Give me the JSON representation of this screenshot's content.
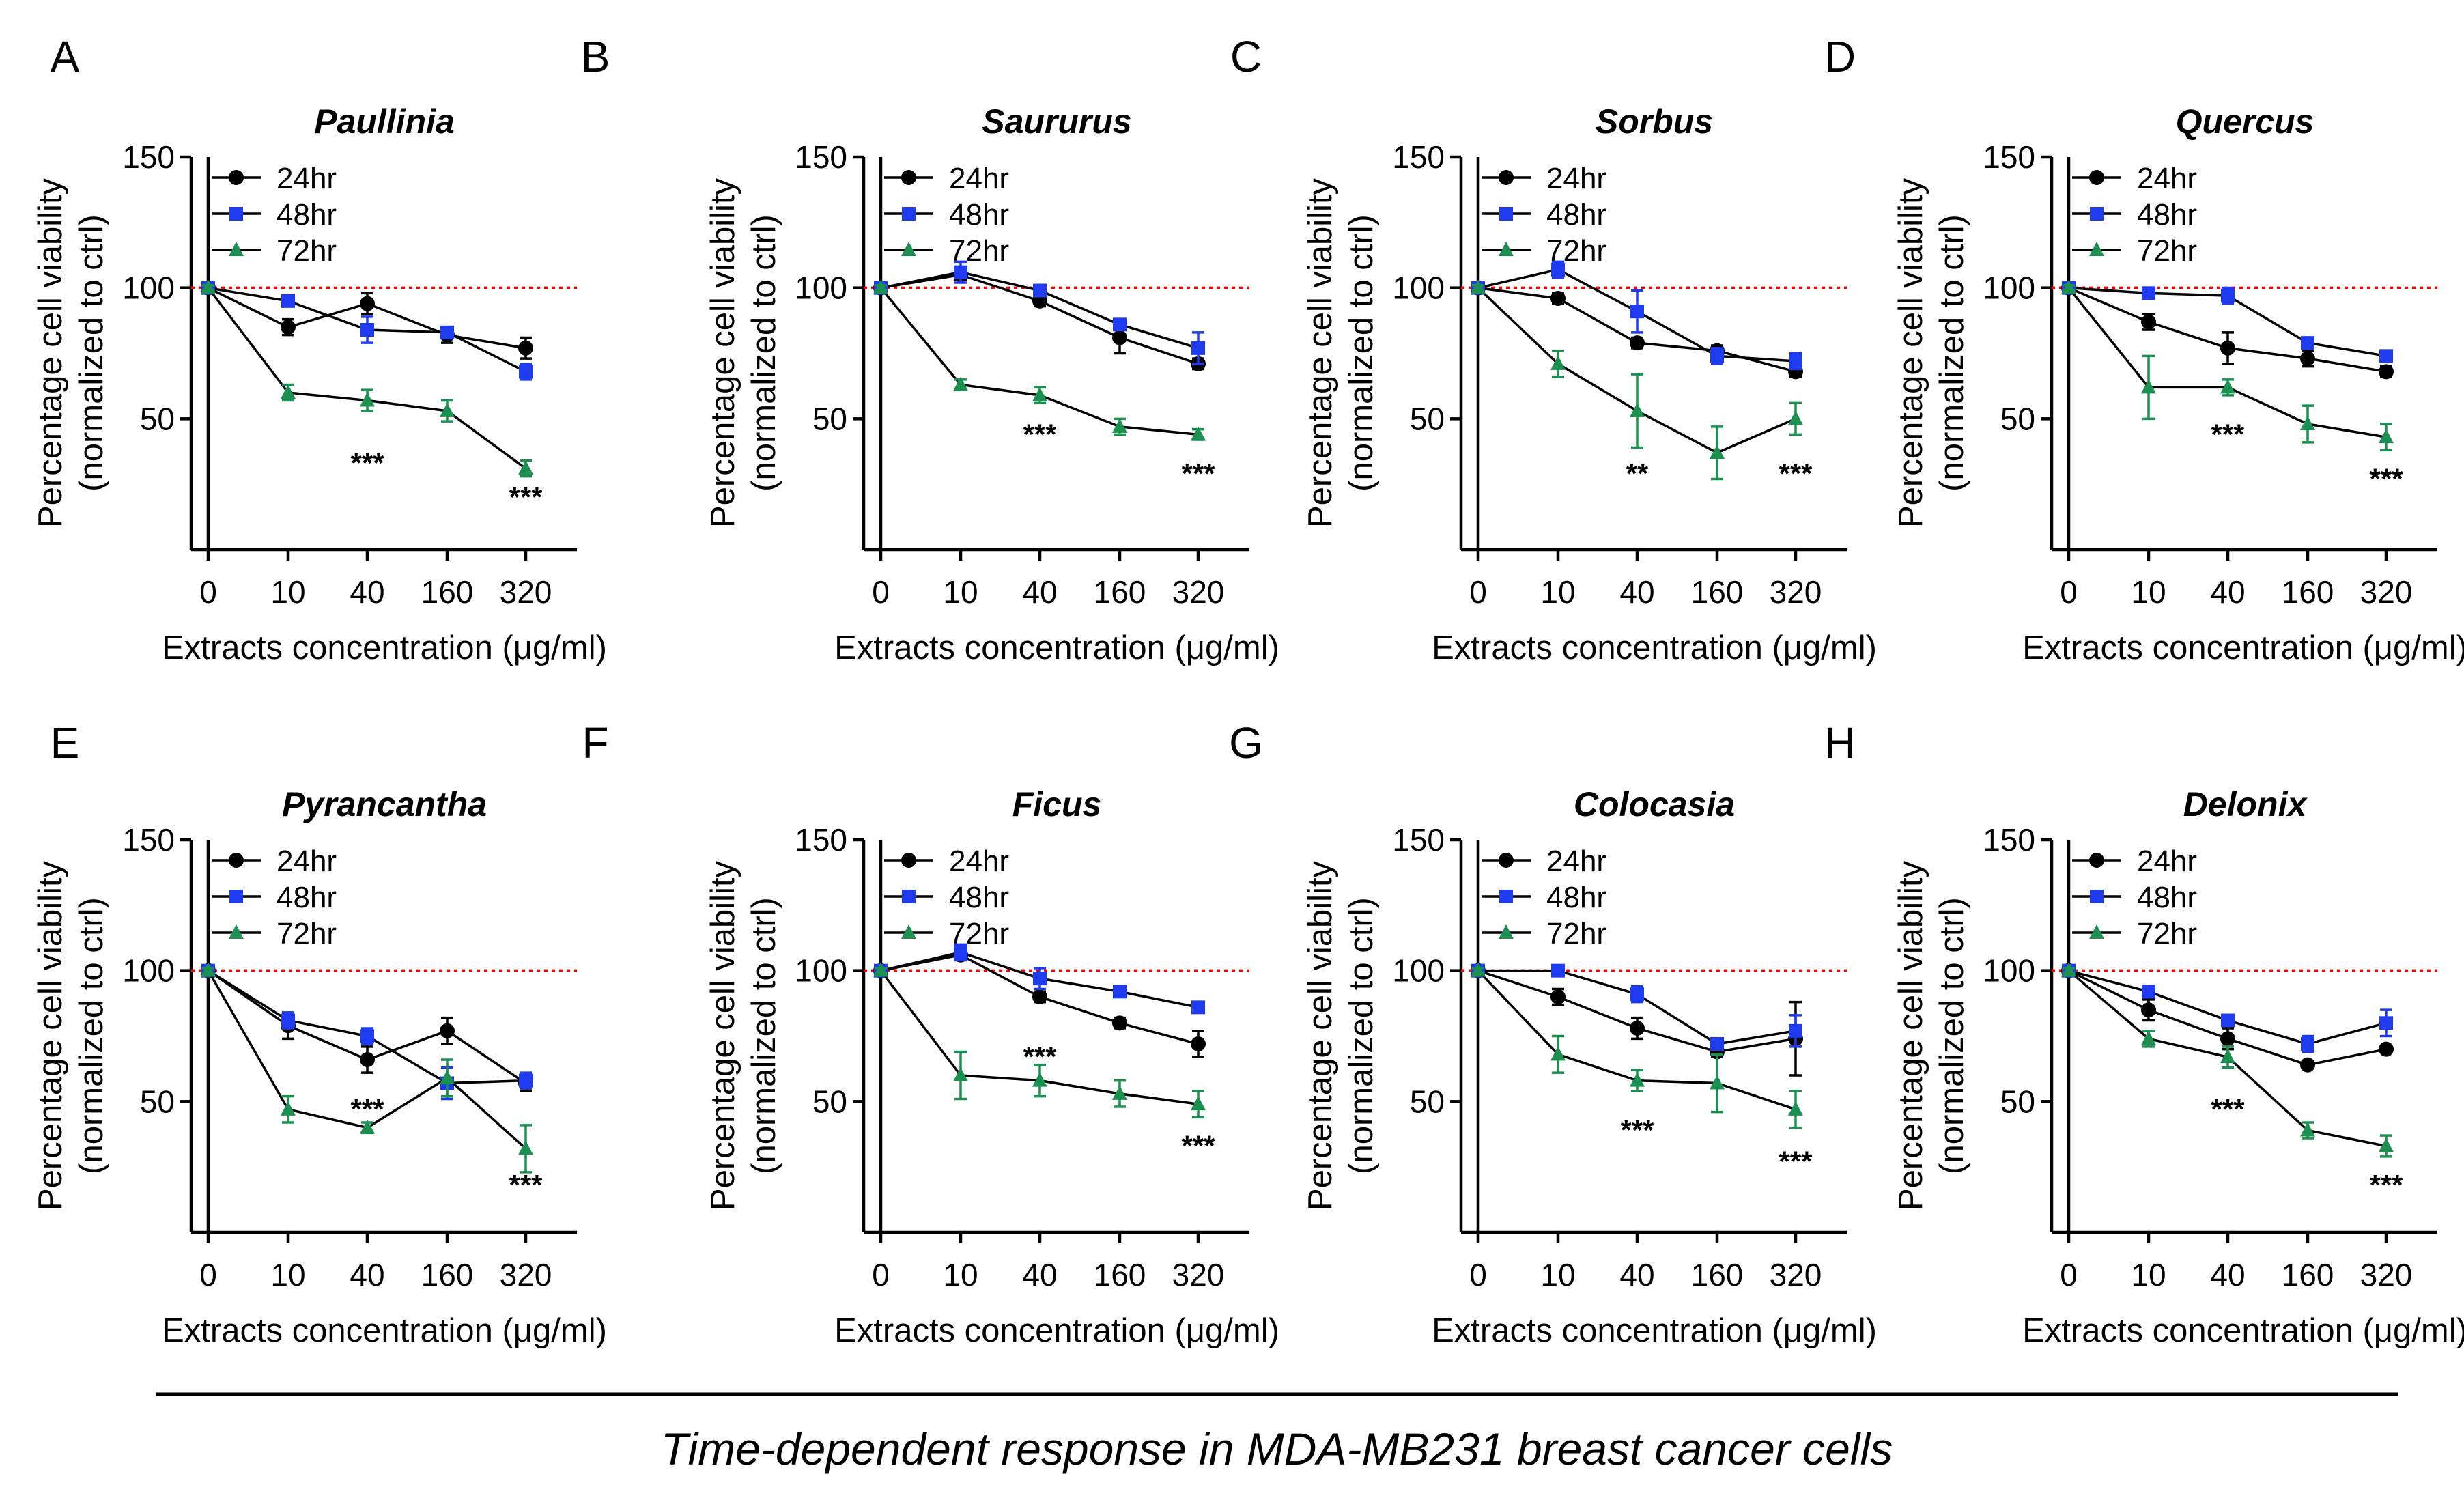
{
  "colors": {
    "h24": "#000000",
    "h48": "#1f3bef",
    "h72": "#1b9050",
    "ref": "#ff0000"
  },
  "caption": "Time-dependent response in MDA-MB231 breast cancer cells",
  "chart_data": [
    {
      "type": "line",
      "panel": "A",
      "title": "Paullinia",
      "xlabel": "Extracts concentration (μg/ml)",
      "ylabel": "Percentage cell viability",
      "ylabel2": "(normalized to ctrl)",
      "categories": [
        "0",
        "10",
        "40",
        "160",
        "320"
      ],
      "yticks": [
        "50",
        "100",
        "150"
      ],
      "ylim": [
        0,
        150
      ],
      "reference_line": 100,
      "series": [
        {
          "name": "24hr",
          "values": [
            100,
            85,
            94,
            82,
            77
          ],
          "errors": [
            1,
            3,
            4,
            3,
            4
          ]
        },
        {
          "name": "48hr",
          "values": [
            100,
            95,
            84,
            83,
            68
          ],
          "errors": [
            1,
            2,
            5,
            2,
            3
          ]
        },
        {
          "name": "72hr",
          "values": [
            100,
            60,
            57,
            53,
            31
          ],
          "errors": [
            1,
            3,
            4,
            4,
            3
          ]
        }
      ],
      "annotations": [
        {
          "text": "***",
          "x_index": 2,
          "y": 33
        },
        {
          "text": "***",
          "x_index": 4,
          "y": 20
        }
      ]
    },
    {
      "type": "line",
      "panel": "B",
      "title": "Saururus",
      "xlabel": "Extracts concentration (μg/ml)",
      "ylabel": "Percentage cell viability",
      "ylabel2": "(normalized to ctrl)",
      "categories": [
        "0",
        "10",
        "40",
        "160",
        "320"
      ],
      "yticks": [
        "50",
        "100",
        "150"
      ],
      "ylim": [
        0,
        150
      ],
      "reference_line": 100,
      "series": [
        {
          "name": "24hr",
          "values": [
            100,
            105,
            95,
            81,
            71
          ],
          "errors": [
            1,
            2,
            2,
            6,
            2
          ]
        },
        {
          "name": "48hr",
          "values": [
            100,
            106,
            99,
            86,
            77
          ],
          "errors": [
            1,
            4,
            2,
            2,
            6
          ]
        },
        {
          "name": "72hr",
          "values": [
            100,
            63,
            59,
            47,
            44
          ],
          "errors": [
            1,
            2,
            3,
            3,
            2
          ]
        }
      ],
      "annotations": [
        {
          "text": "***",
          "x_index": 2,
          "y": 44
        },
        {
          "text": "***",
          "x_index": 4,
          "y": 29
        }
      ]
    },
    {
      "type": "line",
      "panel": "C",
      "title": "Sorbus",
      "xlabel": "Extracts concentration (μg/ml)",
      "ylabel": "Percentage cell viability",
      "ylabel2": "(normalized to ctrl)",
      "categories": [
        "0",
        "10",
        "40",
        "160",
        "320"
      ],
      "yticks": [
        "50",
        "100",
        "150"
      ],
      "ylim": [
        0,
        150
      ],
      "reference_line": 100,
      "series": [
        {
          "name": "24hr",
          "values": [
            100,
            96,
            79,
            76,
            68
          ],
          "errors": [
            1,
            2,
            2,
            2,
            2
          ]
        },
        {
          "name": "48hr",
          "values": [
            100,
            107,
            91,
            74,
            72
          ],
          "errors": [
            1,
            3,
            8,
            3,
            3
          ]
        },
        {
          "name": "72hr",
          "values": [
            100,
            71,
            53,
            37,
            50
          ],
          "errors": [
            1,
            5,
            14,
            10,
            6
          ]
        }
      ],
      "annotations": [
        {
          "text": "**",
          "x_index": 2,
          "y": 29
        },
        {
          "text": "***",
          "x_index": 4,
          "y": 29
        }
      ]
    },
    {
      "type": "line",
      "panel": "D",
      "title": "Quercus",
      "xlabel": "Extracts concentration (μg/ml)",
      "ylabel": "Percentage cell viability",
      "ylabel2": "(normalized to ctrl)",
      "categories": [
        "0",
        "10",
        "40",
        "160",
        "320"
      ],
      "yticks": [
        "50",
        "100",
        "150"
      ],
      "ylim": [
        0,
        150
      ],
      "reference_line": 100,
      "series": [
        {
          "name": "24hr",
          "values": [
            100,
            87,
            77,
            73,
            68
          ],
          "errors": [
            1,
            3,
            6,
            3,
            2
          ]
        },
        {
          "name": "48hr",
          "values": [
            100,
            98,
            97,
            79,
            74
          ],
          "errors": [
            1,
            2,
            3,
            2,
            2
          ]
        },
        {
          "name": "72hr",
          "values": [
            100,
            62,
            62,
            48,
            43
          ],
          "errors": [
            1,
            12,
            3,
            7,
            5
          ]
        }
      ],
      "annotations": [
        {
          "text": "***",
          "x_index": 2,
          "y": 44
        },
        {
          "text": "***",
          "x_index": 4,
          "y": 27
        }
      ]
    },
    {
      "type": "line",
      "panel": "E",
      "title": "Pyrancantha",
      "xlabel": "Extracts concentration (μg/ml)",
      "ylabel": "Percentage cell viability",
      "ylabel2": "(normalized to ctrl)",
      "categories": [
        "0",
        "10",
        "40",
        "160",
        "320"
      ],
      "yticks": [
        "50",
        "100",
        "150"
      ],
      "ylim": [
        0,
        150
      ],
      "reference_line": 100,
      "series": [
        {
          "name": "24hr",
          "values": [
            100,
            79,
            66,
            77,
            57
          ],
          "errors": [
            1,
            5,
            5,
            5,
            3
          ]
        },
        {
          "name": "48hr",
          "values": [
            100,
            81,
            75,
            57,
            58
          ],
          "errors": [
            1,
            3,
            3,
            6,
            3
          ]
        },
        {
          "name": "72hr",
          "values": [
            100,
            47,
            40,
            59,
            32
          ],
          "errors": [
            1,
            5,
            2,
            7,
            9
          ]
        }
      ],
      "annotations": [
        {
          "text": "***",
          "x_index": 2,
          "y": 47
        },
        {
          "text": "***",
          "x_index": 4,
          "y": 18
        }
      ]
    },
    {
      "type": "line",
      "panel": "F",
      "title": "Ficus",
      "xlabel": "Extracts concentration (μg/ml)",
      "ylabel": "Percentage cell viability",
      "ylabel2": "(normalized to ctrl)",
      "categories": [
        "0",
        "10",
        "40",
        "160",
        "320"
      ],
      "yticks": [
        "50",
        "100",
        "150"
      ],
      "ylim": [
        0,
        150
      ],
      "reference_line": 100,
      "series": [
        {
          "name": "24hr",
          "values": [
            100,
            106,
            90,
            80,
            72
          ],
          "errors": [
            1,
            2,
            2,
            2,
            5
          ]
        },
        {
          "name": "48hr",
          "values": [
            100,
            107,
            97,
            92,
            86
          ],
          "errors": [
            1,
            3,
            4,
            1,
            2
          ]
        },
        {
          "name": "72hr",
          "values": [
            100,
            60,
            58,
            53,
            49
          ],
          "errors": [
            1,
            9,
            6,
            5,
            5
          ]
        }
      ],
      "annotations": [
        {
          "text": "***",
          "x_index": 2,
          "y": 67
        },
        {
          "text": "***",
          "x_index": 4,
          "y": 33
        }
      ]
    },
    {
      "type": "line",
      "panel": "G",
      "title": "Colocasia",
      "xlabel": "Extracts concentration (μg/ml)",
      "ylabel": "Percentage cell viability",
      "ylabel2": "(normalized to ctrl)",
      "categories": [
        "0",
        "10",
        "40",
        "160",
        "320"
      ],
      "yticks": [
        "50",
        "100",
        "150"
      ],
      "ylim": [
        0,
        150
      ],
      "reference_line": 100,
      "series": [
        {
          "name": "24hr",
          "values": [
            100,
            90,
            78,
            69,
            74
          ],
          "errors": [
            1,
            3,
            4,
            2,
            14
          ]
        },
        {
          "name": "48hr",
          "values": [
            100,
            100,
            91,
            72,
            77
          ],
          "errors": [
            1,
            1,
            3,
            2,
            6
          ]
        },
        {
          "name": "72hr",
          "values": [
            100,
            68,
            58,
            57,
            47
          ],
          "errors": [
            1,
            7,
            4,
            11,
            7
          ]
        }
      ],
      "annotations": [
        {
          "text": "***",
          "x_index": 2,
          "y": 39
        },
        {
          "text": "***",
          "x_index": 4,
          "y": 27
        }
      ]
    },
    {
      "type": "line",
      "panel": "H",
      "title": "Delonix",
      "xlabel": "Extracts concentration (μg/ml)",
      "ylabel": "Percentage cell viability",
      "ylabel2": "(normalized to ctrl)",
      "categories": [
        "0",
        "10",
        "40",
        "160",
        "320"
      ],
      "yticks": [
        "50",
        "100",
        "150"
      ],
      "ylim": [
        0,
        150
      ],
      "reference_line": 100,
      "series": [
        {
          "name": "24hr",
          "values": [
            100,
            85,
            74,
            64,
            70
          ],
          "errors": [
            1,
            4,
            4,
            1,
            1
          ]
        },
        {
          "name": "48hr",
          "values": [
            100,
            92,
            81,
            72,
            80
          ],
          "errors": [
            1,
            2,
            2,
            3,
            5
          ]
        },
        {
          "name": "72hr",
          "values": [
            100,
            74,
            67,
            39,
            33
          ],
          "errors": [
            1,
            3,
            4,
            3,
            4
          ]
        }
      ],
      "annotations": [
        {
          "text": "***",
          "x_index": 2,
          "y": 47
        },
        {
          "text": "***",
          "x_index": 4,
          "y": 18
        }
      ]
    }
  ]
}
